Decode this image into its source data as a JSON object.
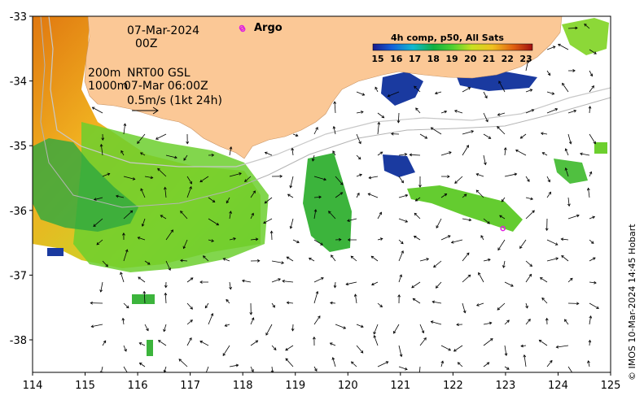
{
  "map": {
    "date": "07-Mar-2024",
    "hour": "00Z",
    "depth_200": "200m",
    "depth_1000": "1000m",
    "product": "NRT00 GSL",
    "velocity_time": "07-Mar 06:00Z",
    "arrow_scale": "0.5m/s (1kt 24h)",
    "argo_label": "Argo",
    "colorbar_title": "4h comp, p50, All Sats",
    "colorbar_ticks": [
      "15",
      "16",
      "17",
      "18",
      "19",
      "20",
      "21",
      "22",
      "23"
    ],
    "credit": "© IMOS 10-Mar-2024 14:45 Hobart",
    "lon_ticks": [
      "114",
      "115",
      "116",
      "117",
      "118",
      "119",
      "120",
      "121",
      "122",
      "123",
      "124",
      "125"
    ],
    "lat_ticks": [
      "-33",
      "-34",
      "-35",
      "-36",
      "-37",
      "-38"
    ],
    "colors": {
      "land": "#fbc896",
      "sst_cool": "#2a8a2a",
      "sst_warm": "#e07010",
      "no_data": "#ffffff"
    },
    "argo_floats": [
      {
        "lon": 118.0,
        "lat": -33.2
      },
      {
        "lon": 122.95,
        "lat": -36.28
      }
    ]
  }
}
